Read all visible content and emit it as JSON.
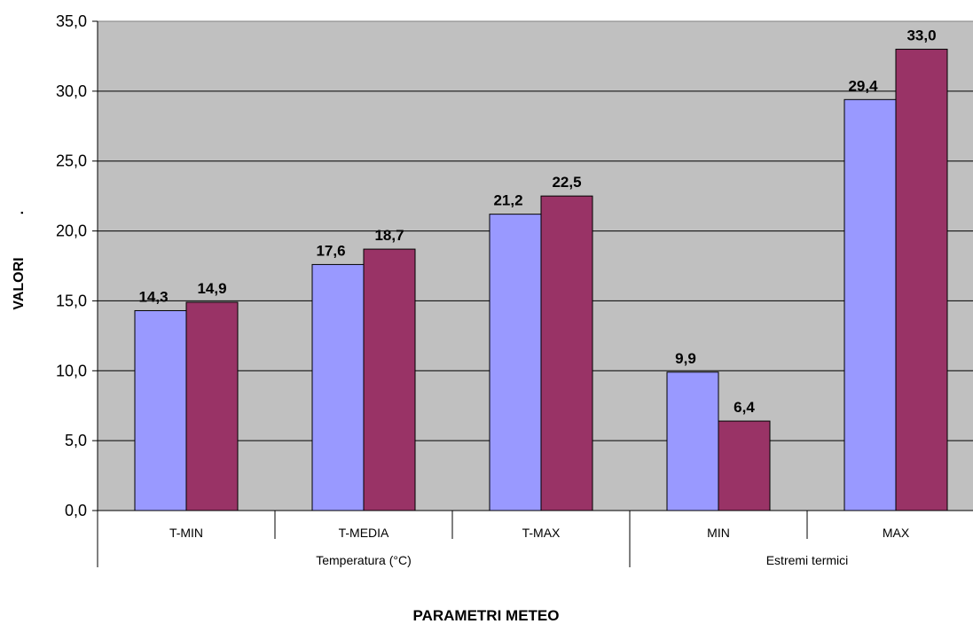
{
  "chart_data": {
    "type": "bar",
    "xlabel": "PARAMETRI METEO",
    "ylabel": "VALORI",
    "ylabel_mark": ".",
    "ylim": [
      0,
      35
    ],
    "ytick_step": 5,
    "yticks": [
      "0,0",
      "5,0",
      "10,0",
      "15,0",
      "20,0",
      "25,0",
      "30,0",
      "35,0"
    ],
    "grid": true,
    "legend": "none",
    "categories": [
      "T-MIN",
      "T-MEDIA",
      "T-MAX",
      "MIN",
      "MAX"
    ],
    "groups": [
      {
        "label": "Temperatura (°C)",
        "span": [
          0,
          3
        ]
      },
      {
        "label": "Estremi termici",
        "span": [
          3,
          5
        ]
      }
    ],
    "series": [
      {
        "values": [
          14.3,
          17.6,
          21.2,
          9.9,
          29.4
        ],
        "labels": [
          "14,3",
          "17,6",
          "21,2",
          "9,9",
          "29,4"
        ],
        "color": "#9999ff"
      },
      {
        "values": [
          14.9,
          18.7,
          22.5,
          6.4,
          33.0
        ],
        "labels": [
          "14,9",
          "18,7",
          "22,5",
          "6,4",
          "33,0"
        ],
        "color": "#993366"
      }
    ],
    "plot_background": "#c0c0c0"
  }
}
